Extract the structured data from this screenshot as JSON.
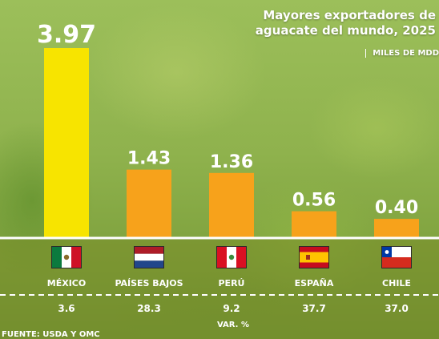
{
  "title_line1": "Mayores exportadores de",
  "title_line2": "aguacate del mundo, 2025",
  "subtitle": "MILES DE MDD",
  "var_label": "VAR. %",
  "source": "FUENTE: USDA Y OMC",
  "colors": {
    "highlight": "#f7e400",
    "bar": "#f7a21b",
    "text": "#ffffff"
  },
  "chart_data": {
    "type": "bar",
    "title": "Mayores exportadores de aguacate del mundo, 2025",
    "ylabel": "MILES DE MDD",
    "categories": [
      "MÉXICO",
      "PAÍSES BAJOS",
      "PERÚ",
      "ESPAÑA",
      "CHILE"
    ],
    "values": [
      3.97,
      1.43,
      1.36,
      0.56,
      0.4
    ],
    "value_labels": [
      "3.97",
      "1.43",
      "1.36",
      "0.56",
      "0.40"
    ],
    "var_pct": [
      "3.6",
      "28.3",
      "9.2",
      "37.7",
      "37.0"
    ],
    "flags": [
      "mexico-flag-icon",
      "netherlands-flag-icon",
      "peru-flag-icon",
      "spain-flag-icon",
      "chile-flag-icon"
    ],
    "ylim": [
      0,
      3.97
    ],
    "grid": false,
    "legend": "none"
  }
}
